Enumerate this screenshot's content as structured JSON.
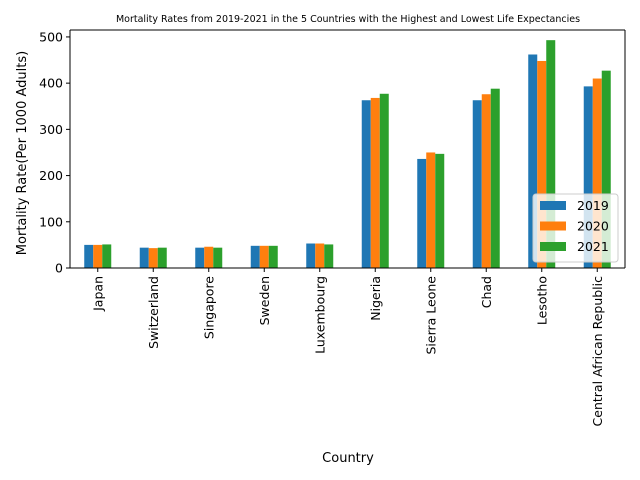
{
  "chart_data": {
    "type": "bar",
    "title": "Mortality Rates from 2019-2021 in the 5 Countries with the Highest and Lowest Life Expectancies",
    "xlabel": "Country",
    "ylabel": "Mortality Rate(Per 1000 Adults)",
    "ylim": [
      0,
      515
    ],
    "yticks": [
      0,
      100,
      200,
      300,
      400,
      500
    ],
    "grid": false,
    "legend_position": "lower-right",
    "categories": [
      "Japan",
      "Switzerland",
      "Singapore",
      "Sweden",
      "Luxembourg",
      "Nigeria",
      "Sierra Leone",
      "Chad",
      "Lesotho",
      "Central African Republic"
    ],
    "series": [
      {
        "name": "2019",
        "color": "#1f77b4",
        "values": [
          50,
          44,
          44,
          48,
          53,
          363,
          236,
          363,
          462,
          393
        ]
      },
      {
        "name": "2020",
        "color": "#ff7f0e",
        "values": [
          50,
          43,
          46,
          48,
          53,
          368,
          250,
          376,
          448,
          410
        ]
      },
      {
        "name": "2021",
        "color": "#2ca02c",
        "values": [
          51,
          44,
          44,
          48,
          51,
          377,
          247,
          388,
          493,
          427
        ]
      }
    ]
  }
}
